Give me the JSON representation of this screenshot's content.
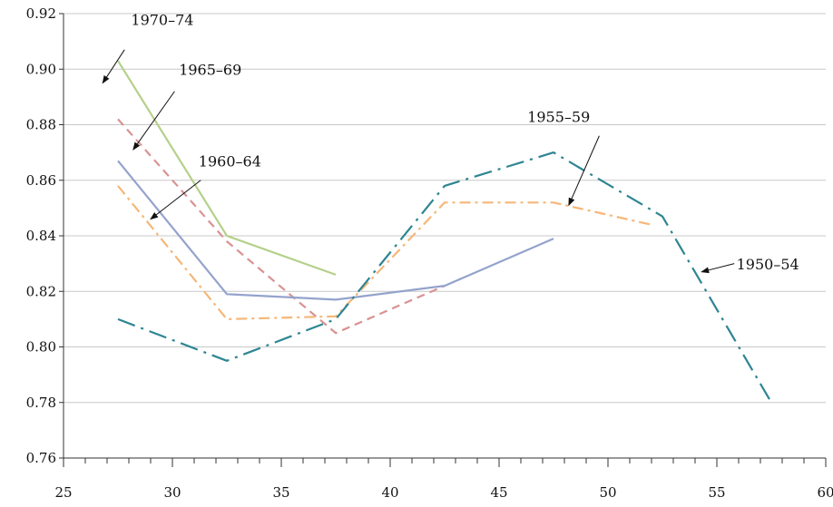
{
  "chart_data": {
    "type": "line",
    "title": "",
    "xlabel": "",
    "ylabel": "",
    "xlim": [
      25,
      60
    ],
    "ylim": [
      0.76,
      0.92
    ],
    "x_ticks": [
      "25",
      "30",
      "35",
      "40",
      "45",
      "50",
      "55",
      "60"
    ],
    "y_ticks": [
      "0.76",
      "0.78",
      "0.80",
      "0.82",
      "0.84",
      "0.86",
      "0.88",
      "0.90",
      "0.92"
    ],
    "grid": "horizontal",
    "series": [
      {
        "name": "1970–74",
        "color": "#b5d08a",
        "dash": "solid",
        "points": [
          [
            27.5,
            0.903
          ],
          [
            32.5,
            0.84
          ],
          [
            37.5,
            0.826
          ]
        ],
        "label_pos": [
          28.1,
          0.916
        ],
        "arrow_from": [
          27.8,
          0.907
        ],
        "arrow_to": [
          26.8,
          0.895
        ]
      },
      {
        "name": "1965–69",
        "color": "#d99292",
        "dash": "dash",
        "points": [
          [
            27.5,
            0.882
          ],
          [
            32.5,
            0.838
          ],
          [
            37.5,
            0.805
          ],
          [
            42.5,
            0.822
          ]
        ],
        "label_pos": [
          30.3,
          0.898
        ],
        "arrow_from": [
          30.1,
          0.892
        ],
        "arrow_to": [
          28.2,
          0.871
        ]
      },
      {
        "name": "1960–64",
        "color": "#94a3cc",
        "dash": "solid",
        "points": [
          [
            27.5,
            0.867
          ],
          [
            32.5,
            0.819
          ],
          [
            37.5,
            0.817
          ],
          [
            42.5,
            0.822
          ],
          [
            47.5,
            0.839
          ]
        ],
        "label_pos": [
          31.2,
          0.865
        ],
        "arrow_from": [
          31.3,
          0.86
        ],
        "arrow_to": [
          29.0,
          0.846
        ]
      },
      {
        "name": "1955–59",
        "color": "#f5b778",
        "dash": "dashdot",
        "points": [
          [
            27.5,
            0.858
          ],
          [
            32.5,
            0.81
          ],
          [
            37.5,
            0.811
          ],
          [
            42.5,
            0.852
          ],
          [
            47.5,
            0.852
          ],
          [
            52,
            0.844
          ]
        ],
        "label_pos": [
          46.3,
          0.881
        ],
        "arrow_from": [
          49.6,
          0.876
        ],
        "arrow_to": [
          48.2,
          0.851
        ]
      },
      {
        "name": "1950–54",
        "color": "#2e8593",
        "dash": "longdashdot",
        "points": [
          [
            27.5,
            0.81
          ],
          [
            32.5,
            0.795
          ],
          [
            37.5,
            0.81
          ],
          [
            42.5,
            0.858
          ],
          [
            47.5,
            0.87
          ],
          [
            52.5,
            0.847
          ],
          [
            57.5,
            0.78
          ]
        ],
        "label_pos": [
          55.9,
          0.828
        ],
        "arrow_from": [
          55.8,
          0.83
        ],
        "arrow_to": [
          54.3,
          0.827
        ]
      }
    ]
  }
}
